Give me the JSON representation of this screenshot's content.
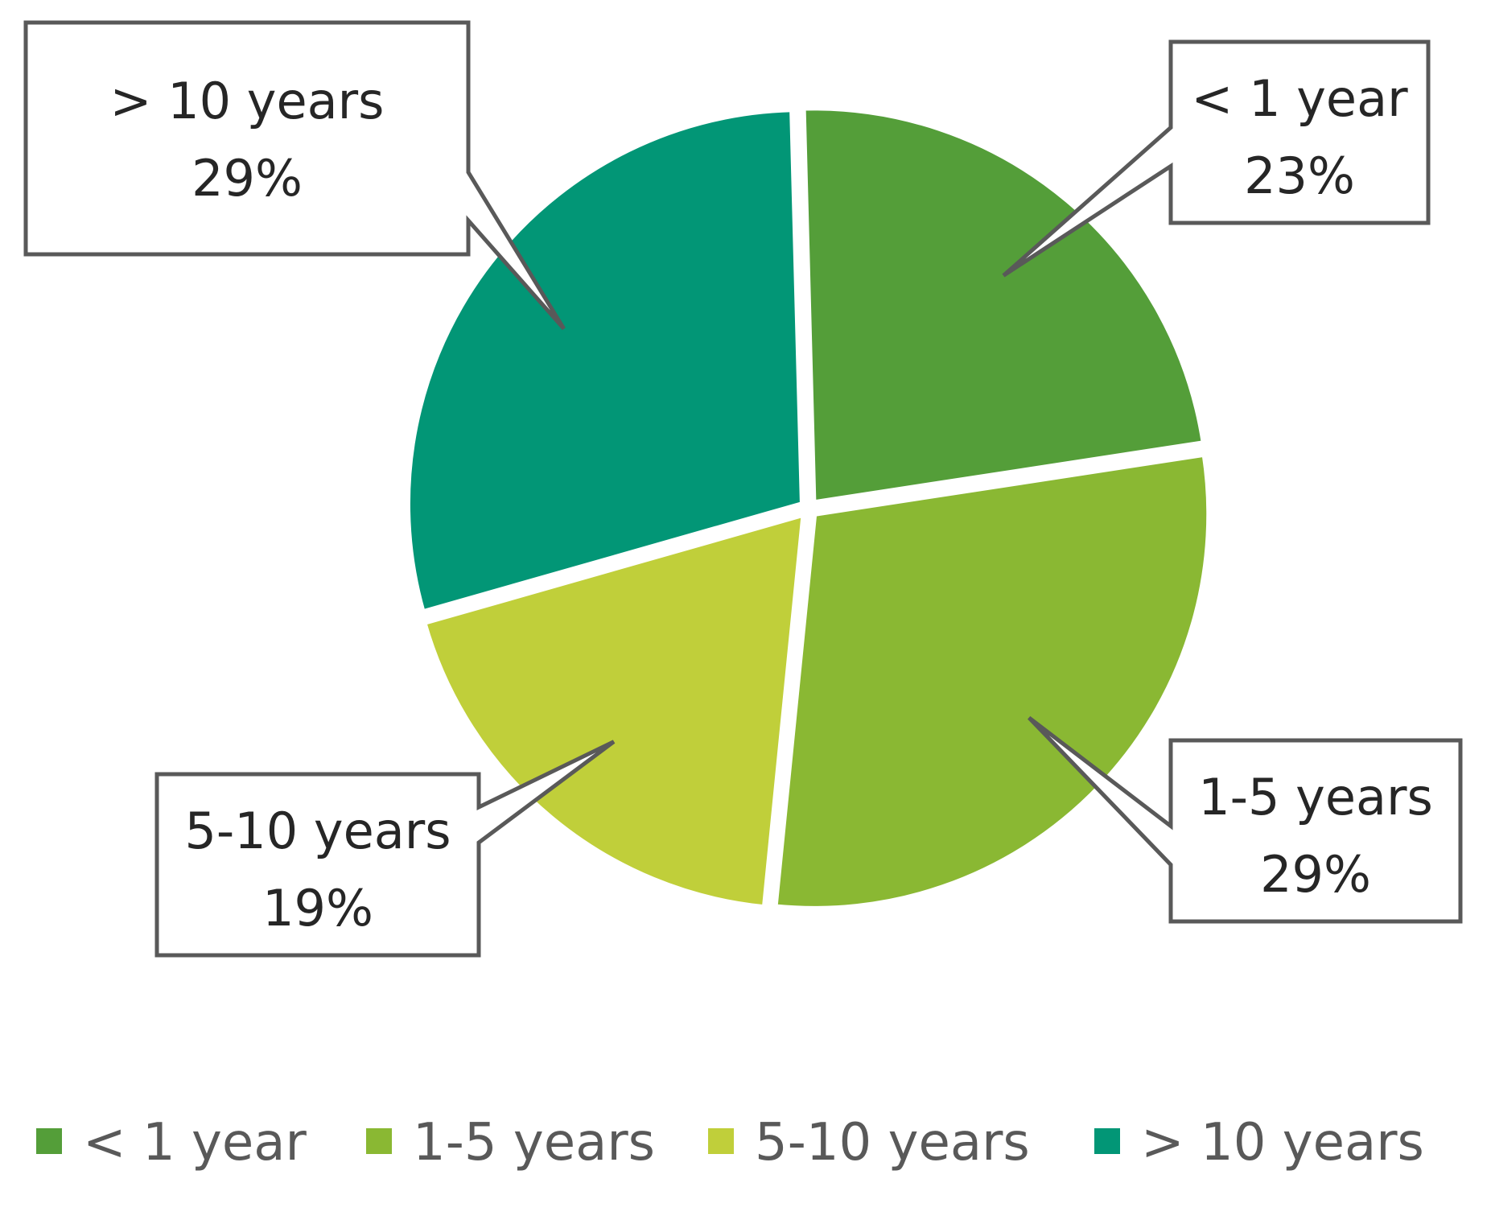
{
  "chart_data": {
    "type": "pie",
    "slices": [
      {
        "label": "< 1 year",
        "value": 23,
        "display": "23%",
        "color": "#549e39"
      },
      {
        "label": "1-5 years",
        "value": 29,
        "display": "29%",
        "color": "#8ab833"
      },
      {
        "label": "5-10 years",
        "value": 19,
        "display": "19%",
        "color": "#c0cf3a"
      },
      {
        "label": "> 10 years",
        "value": 29,
        "display": "29%",
        "color": "#029676"
      }
    ],
    "legend": {
      "position": "bottom",
      "items": [
        "< 1 year",
        "1-5 years",
        "5-10 years",
        "> 10 years"
      ]
    },
    "data_labels": "callouts with category name and percentage"
  }
}
